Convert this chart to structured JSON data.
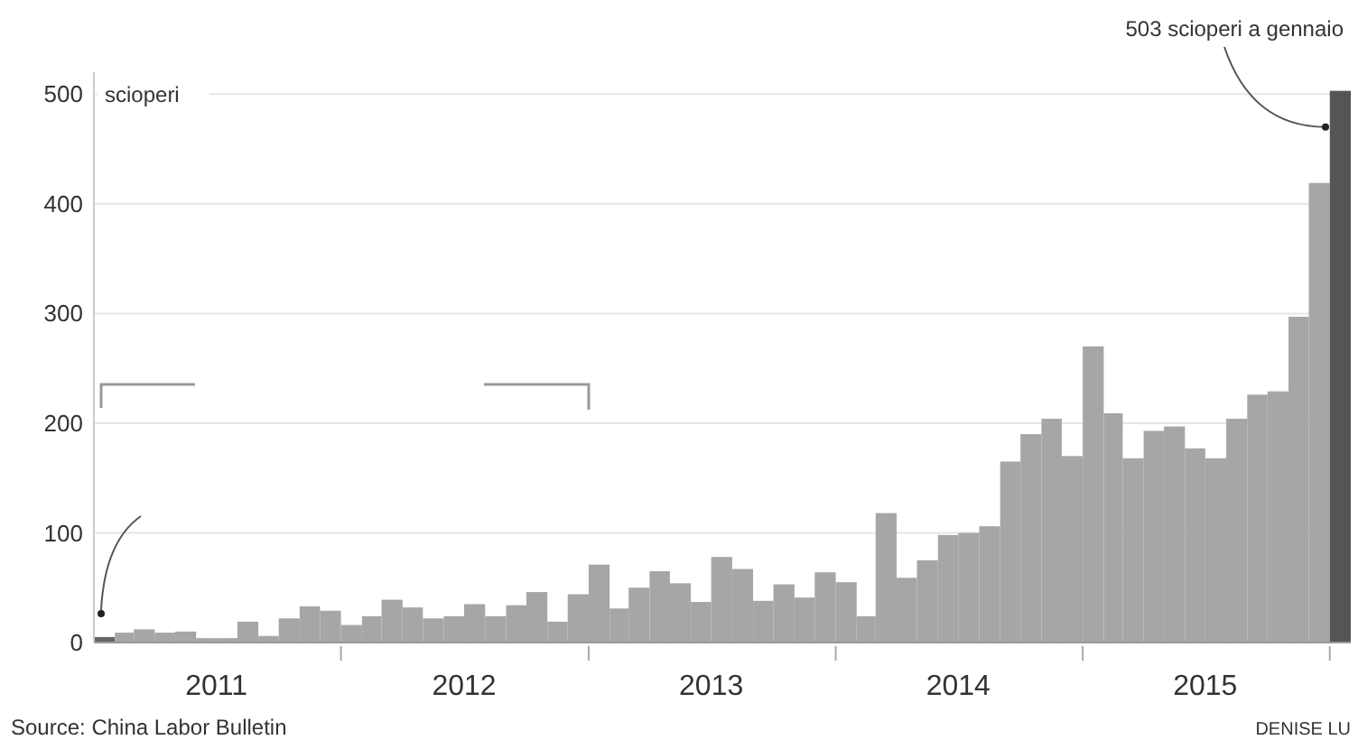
{
  "chart_data": {
    "type": "bar",
    "ylabel": "scioperi",
    "x": [
      "2011-01-16",
      "2011-02-15",
      "2011-03-16",
      "2011-04-16",
      "2011-05-16",
      "2011-06-16",
      "2011-07-16",
      "2011-08-16",
      "2011-09-16",
      "2011-10-16",
      "2011-11-16",
      "2011-12-16",
      "2012-01-16",
      "2012-02-15",
      "2012-03-16",
      "2012-04-16",
      "2012-05-16",
      "2012-06-16",
      "2012-07-16",
      "2012-08-16",
      "2012-09-16",
      "2012-10-16",
      "2012-11-16",
      "2012-12-16",
      "2013-01-16",
      "2013-02-15",
      "2013-03-16",
      "2013-04-16",
      "2013-05-16",
      "2013-06-16",
      "2013-07-16",
      "2013-08-16",
      "2013-09-16",
      "2013-10-16",
      "2013-11-16",
      "2013-12-16",
      "2014-01-16",
      "2014-02-15",
      "2014-03-16",
      "2014-04-16",
      "2014-05-16",
      "2014-06-16",
      "2014-07-16",
      "2014-08-16",
      "2014-09-16",
      "2014-10-16",
      "2014-11-16",
      "2014-12-16",
      "2015-01-16",
      "2015-02-15",
      "2015-03-16",
      "2015-04-16",
      "2015-05-16",
      "2015-06-16",
      "2015-07-16",
      "2015-08-16",
      "2015-09-16",
      "2015-10-16",
      "2015-11-16",
      "2015-12-16",
      "2016-01-16"
    ],
    "values": [
      5,
      9,
      12,
      9,
      10,
      4,
      4,
      19,
      6,
      22,
      33,
      29,
      16,
      24,
      39,
      32,
      22,
      24,
      35,
      24,
      34,
      46,
      19,
      44,
      71,
      31,
      50,
      65,
      54,
      37,
      78,
      67,
      38,
      53,
      41,
      64,
      55,
      24,
      118,
      59,
      75,
      98,
      100,
      106,
      165,
      190,
      204,
      170,
      270,
      209,
      168,
      193,
      197,
      177,
      168,
      204,
      226,
      229,
      297,
      419,
      503
    ],
    "colors": [
      "#666666",
      "#a6a6a6",
      "#a6a6a6",
      "#a6a6a6",
      "#a6a6a6",
      "#a6a6a6",
      "#a6a6a6",
      "#a6a6a6",
      "#a6a6a6",
      "#a6a6a6",
      "#a6a6a6",
      "#a6a6a6",
      "#a6a6a6",
      "#a6a6a6",
      "#a6a6a6",
      "#a6a6a6",
      "#a6a6a6",
      "#a6a6a6",
      "#a6a6a6",
      "#a6a6a6",
      "#a6a6a6",
      "#a6a6a6",
      "#a6a6a6",
      "#a6a6a6",
      "#a6a6a6",
      "#a6a6a6",
      "#a6a6a6",
      "#a6a6a6",
      "#a6a6a6",
      "#a6a6a6",
      "#a6a6a6",
      "#a6a6a6",
      "#a6a6a6",
      "#a6a6a6",
      "#a6a6a6",
      "#a6a6a6",
      "#a6a6a6",
      "#a6a6a6",
      "#a6a6a6",
      "#a6a6a6",
      "#a6a6a6",
      "#a6a6a6",
      "#a6a6a6",
      "#a6a6a6",
      "#a6a6a6",
      "#a6a6a6",
      "#a6a6a6",
      "#a6a6a6",
      "#a6a6a6",
      "#a6a6a6",
      "#a6a6a6",
      "#a6a6a6",
      "#a6a6a6",
      "#a6a6a6",
      "#a6a6a6",
      "#a6a6a6",
      "#a6a6a6",
      "#a6a6a6",
      "#a6a6a6",
      "#a6a6a6",
      "#555555"
    ],
    "xlim": [
      "2011-01",
      "2016-02"
    ],
    "xticks": [
      {
        "value": "2011-07",
        "label": "2011"
      },
      {
        "value": "2012-01",
        "label": null
      },
      {
        "value": "2012-07",
        "label": "2012"
      },
      {
        "value": "2013-01",
        "label": null
      },
      {
        "value": "2013-07",
        "label": "2013"
      },
      {
        "value": "2014-01",
        "label": null
      },
      {
        "value": "2014-07",
        "label": "2014"
      },
      {
        "value": "2015-01",
        "label": null
      },
      {
        "value": "2015-07",
        "label": "2015"
      },
      {
        "value": "2016-01",
        "label": null
      }
    ],
    "ylim": [
      0,
      520
    ],
    "yticks": [
      0,
      100,
      200,
      300,
      400,
      500
    ],
    "grid": "y",
    "annotations": [
      {
        "text": "503 scioperi a gennaio",
        "x": "2016-01-16",
        "y": 503
      },
      "Source: China Labor Bulletin",
      "DENISE LU"
    ]
  }
}
